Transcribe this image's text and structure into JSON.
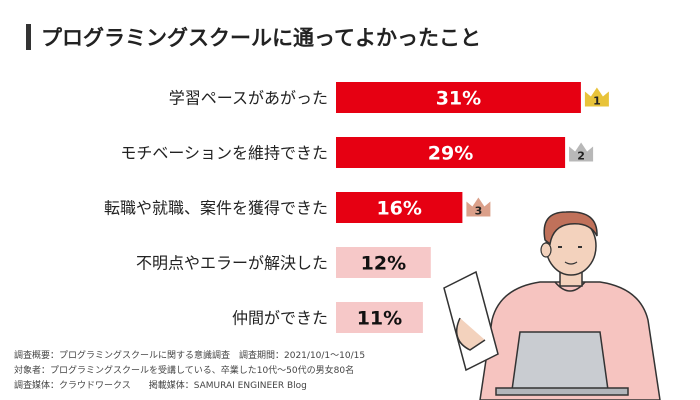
{
  "header": {
    "title": "プログラミングスクールに通ってよかったこと"
  },
  "chart_data": {
    "type": "bar",
    "orientation": "horizontal",
    "categories": [
      "学習ペースがあがった",
      "モチベーションを維持できた",
      "転職や就職、案件を獲得できた",
      "不明点やエラーが解決した",
      "仲間ができた"
    ],
    "values": [
      31,
      29,
      16,
      12,
      11
    ],
    "value_labels": [
      "31%",
      "29%",
      "16%",
      "12%",
      "11%"
    ],
    "ranks": [
      "1",
      "2",
      "3"
    ],
    "colors": {
      "top_bar": "#e60012",
      "other_bar": "#f6c8c8",
      "top_text": "#ffffff",
      "other_text": "#111111",
      "gold": "#e8c33a",
      "silver": "#b8b8b8",
      "bronze": "#dba08a"
    }
  },
  "footer": {
    "lines": [
      "調査概要：プログラミングスクールに関する意識調査　調査期間：2021/10/1〜10/15",
      "対象者：プログラミングスクールを受講している、卒業した10代〜50代の男女80名",
      "調査媒体：クラウドワークス　　掲載媒体：SAMURAI ENGINEER Blog"
    ]
  }
}
